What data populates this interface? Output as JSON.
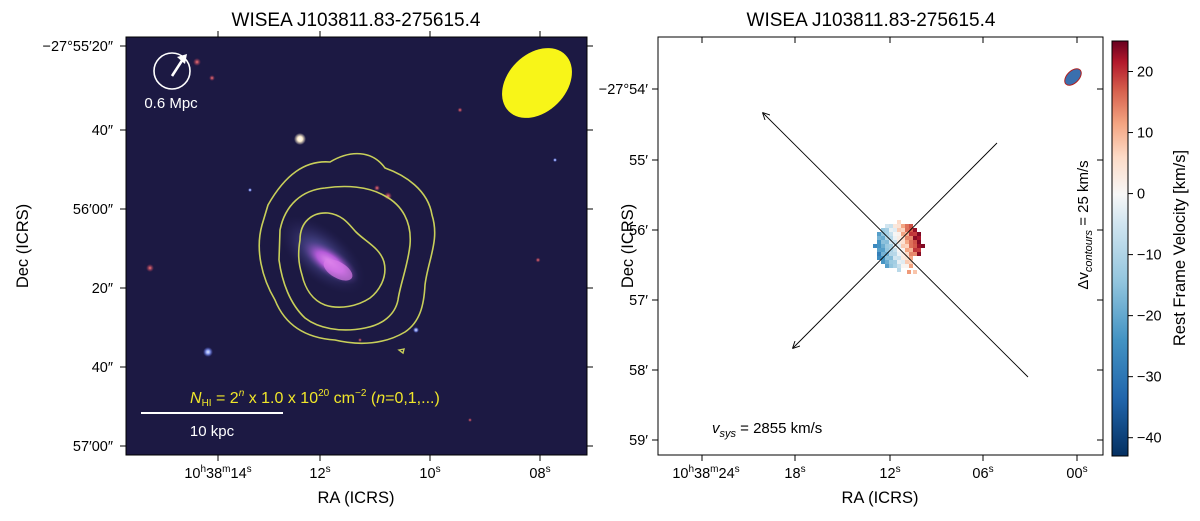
{
  "chart_data": [
    {
      "type": "image",
      "title": "WISEA J103811.83-275615.4",
      "xlabel": "RA (ICRS)",
      "ylabel": "Dec (ICRS)",
      "x_ticks": [
        {
          "main": "10",
          "sup": "h",
          "mid": "38",
          "sup2": "m",
          "tail": "14",
          "sup3": "s"
        },
        {
          "main": "12",
          "sup": "s"
        },
        {
          "main": "10",
          "sup": "s"
        },
        {
          "main": "08",
          "sup": "s"
        }
      ],
      "y_ticks": [
        "−27°55′20″",
        "40″",
        "56′00″",
        "20″",
        "40″",
        "57′00″"
      ],
      "scale_circle_label": "0.6 Mpc",
      "scalebar_label": "10 kpc",
      "contour_label": {
        "sym": "N",
        "sub": "HI",
        "eq": " = 2",
        "exp_n": "n",
        "mid": " x 1.0 x 10",
        "exp_20": "20",
        "unit": " cm",
        "exp_m2": "−2",
        "paren_open": " (",
        "n_var": "n",
        "paren_rest": "=0,1,...)"
      },
      "contour_levels_cm2": [
        1e+20,
        2e+20,
        4e+20
      ],
      "colors": {
        "background": "#1a1840",
        "contour": "#c8cf5a",
        "beam": "#f8f518",
        "scale": "#ffffff"
      }
    },
    {
      "type": "heatmap",
      "title": "WISEA J103811.83-275615.4",
      "xlabel": "RA (ICRS)",
      "ylabel": "Dec (ICRS)",
      "x_ticks": [
        {
          "main": "10",
          "sup": "h",
          "mid": "38",
          "sup2": "m",
          "tail": "24",
          "sup3": "s"
        },
        {
          "main": "18",
          "sup": "s"
        },
        {
          "main": "12",
          "sup": "s"
        },
        {
          "main": "06",
          "sup": "s"
        },
        {
          "main": "00",
          "sup": "s"
        }
      ],
      "y_ticks": [
        "−27°54′",
        "55′",
        "56′",
        "57′",
        "58′",
        "59′"
      ],
      "contour_note": {
        "prefix": "Δv",
        "sub": "contours",
        "suffix": " = 25 km/s"
      },
      "vsys": {
        "sym": "v",
        "sub": "sys",
        "value": " = 2855 km/s"
      },
      "colorbar": {
        "label": "Rest Frame Velocity [km/s]",
        "min": -43,
        "max": 25,
        "ticks": [
          20,
          10,
          0,
          -10,
          -20,
          -30,
          -40
        ],
        "tick_labels": [
          "20",
          "10",
          "0",
          "−10",
          "−20",
          "−30",
          "−40"
        ],
        "colormap": "RdBu_r"
      },
      "colors": {
        "beam": "#3a6fae",
        "beam_edge": "#b02020",
        "arrow": "#000000"
      }
    }
  ]
}
